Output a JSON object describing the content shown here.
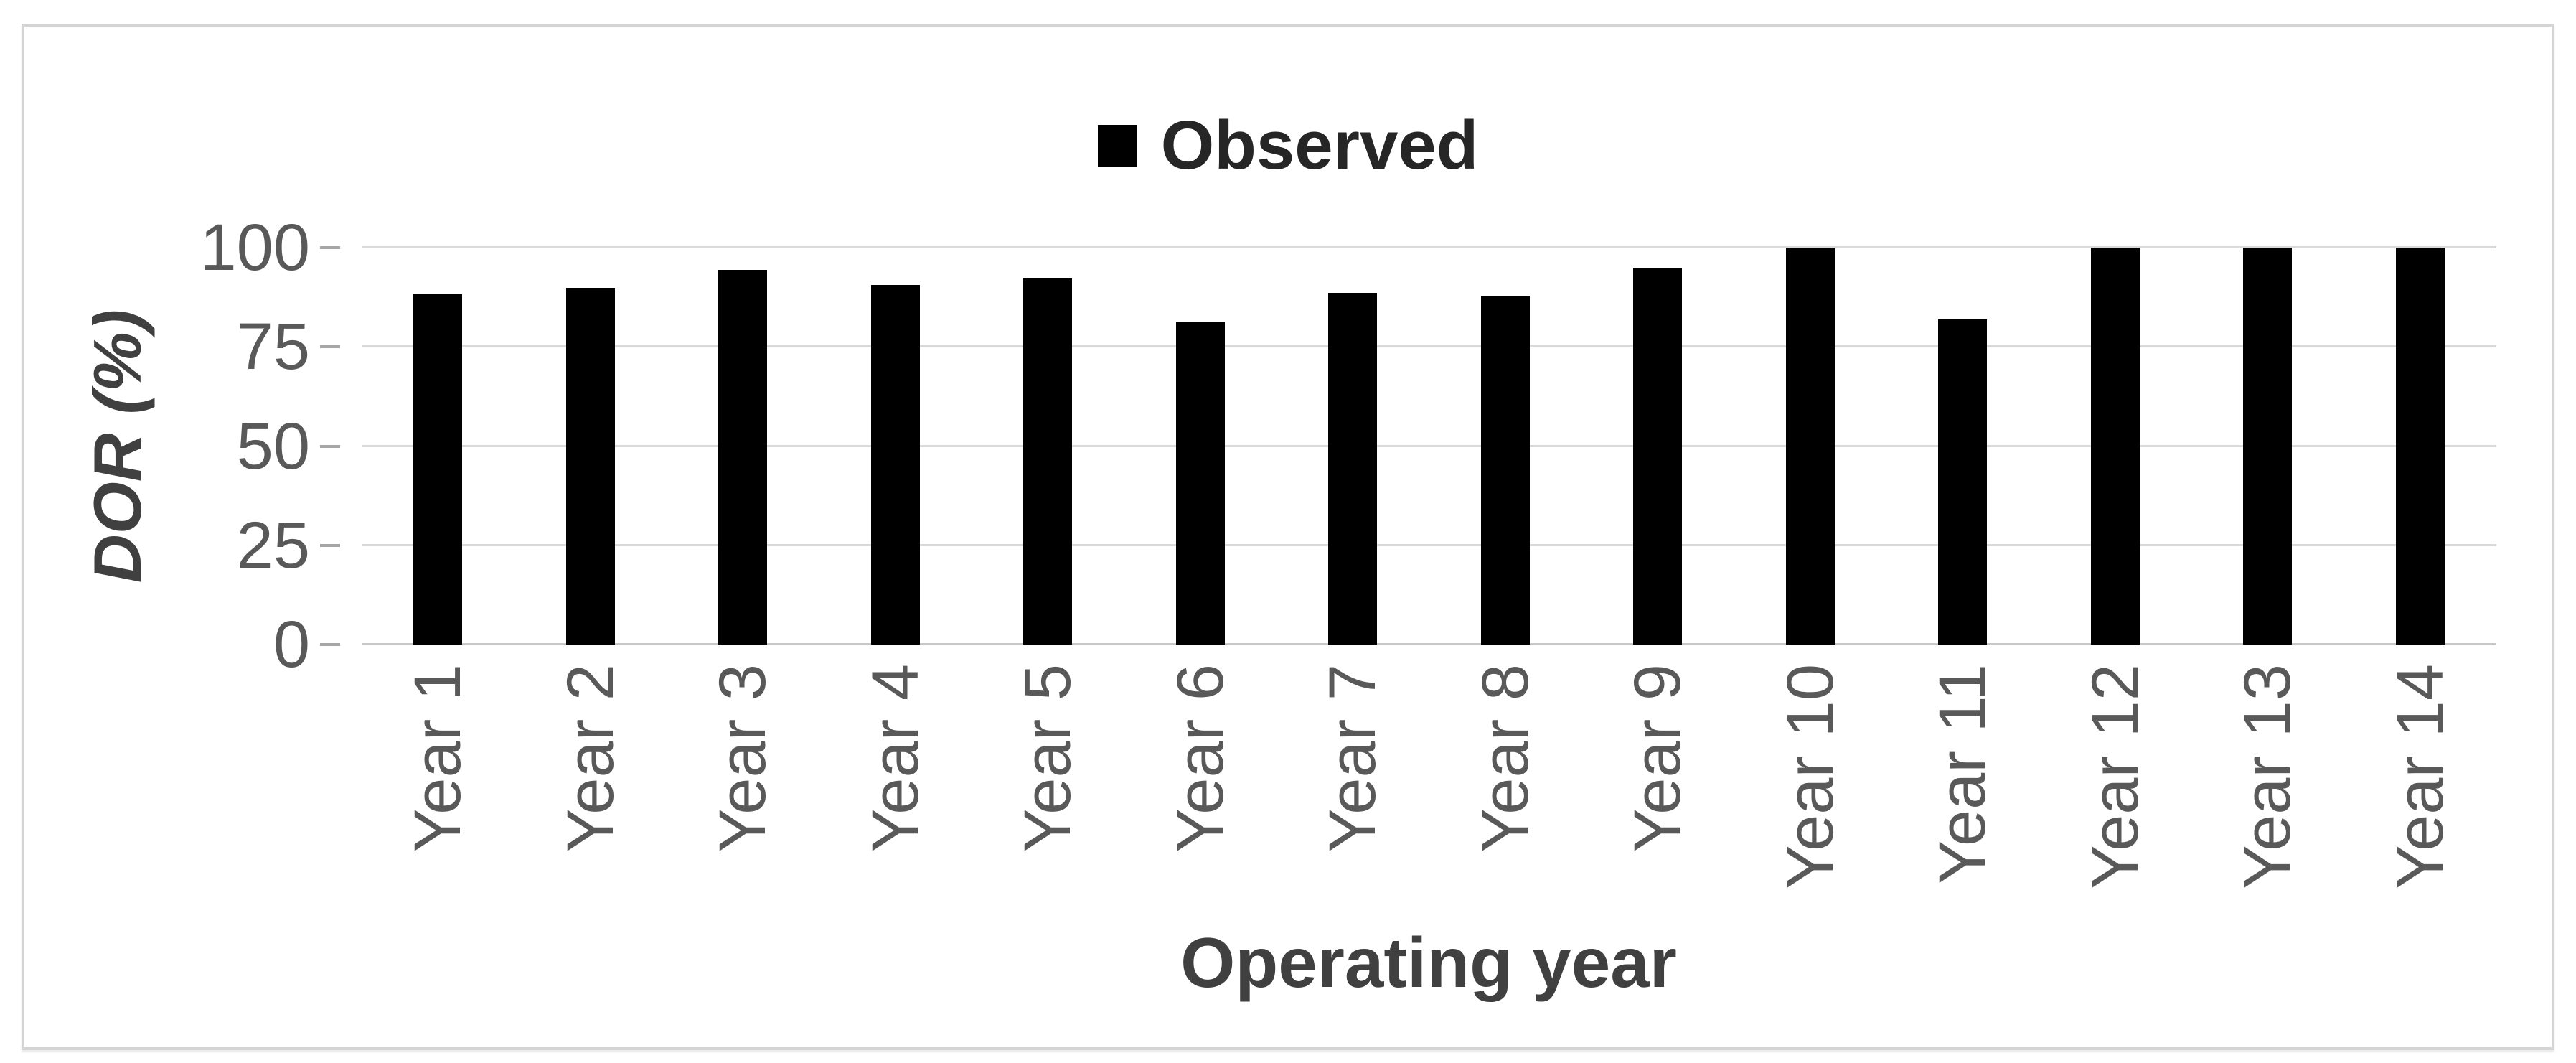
{
  "chart_data": {
    "type": "bar",
    "legend_label": "Observed",
    "legend_position": "top-center",
    "categories": [
      "Year 1",
      "Year 2",
      "Year 3",
      "Year 4",
      "Year 5",
      "Year 6",
      "Year 7",
      "Year 8",
      "Year 9",
      "Year 10",
      "Year 11",
      "Year 12",
      "Year 13",
      "Year 14"
    ],
    "values": [
      88.3,
      89.8,
      94.4,
      90.6,
      92.2,
      81.3,
      88.7,
      87.9,
      94.9,
      100,
      81.9,
      100,
      100,
      100
    ],
    "title": "",
    "xlabel": "Operating year",
    "ylabel": "DOR (%)",
    "ylim": [
      0,
      100
    ],
    "yticks": [
      0,
      25,
      50,
      75,
      100
    ],
    "grid": true,
    "colors": {
      "bar": "#000000",
      "gridline": "#d9d9d9",
      "axis_line": "#c8c8c8",
      "tick_text": "#595959",
      "legend_text": "#262626",
      "axis_title_text": "#404040",
      "figure_border": "#d4d4d4",
      "background": "#ffffff"
    }
  }
}
